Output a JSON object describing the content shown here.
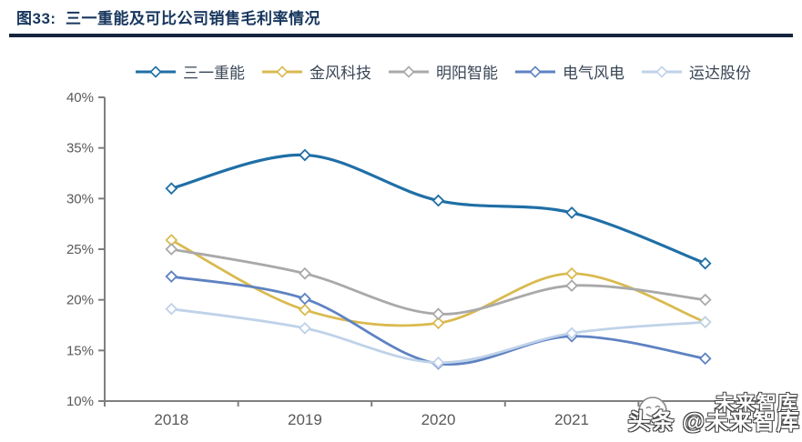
{
  "header": {
    "title": "图33:  三一重能及可比公司销售毛利率情况",
    "accent_color": "#17365D",
    "rule_color": "#16243D"
  },
  "chart_data": {
    "type": "line",
    "title": "三一重能及可比公司销售毛利率情况",
    "categories": [
      "2018",
      "2019",
      "2020",
      "2021",
      ""
    ],
    "series": [
      {
        "name": "三一重能",
        "color": "#1F6FA6",
        "line_width": 3.2,
        "values": [
          31.0,
          34.3,
          29.8,
          28.6,
          23.6
        ]
      },
      {
        "name": "金风科技",
        "color": "#D9BA4F",
        "line_width": 2.8,
        "values": [
          25.9,
          19.0,
          17.7,
          22.6,
          17.8
        ]
      },
      {
        "name": "明阳智能",
        "color": "#A9A9A9",
        "line_width": 2.8,
        "values": [
          25.0,
          22.6,
          18.6,
          21.4,
          20.0
        ]
      },
      {
        "name": "电气风电",
        "color": "#5E82C2",
        "line_width": 2.8,
        "values": [
          22.3,
          20.1,
          13.7,
          16.4,
          14.2
        ]
      },
      {
        "name": "运达股份",
        "color": "#BFD2E9",
        "line_width": 2.8,
        "values": [
          19.1,
          17.2,
          13.8,
          16.7,
          17.8
        ]
      }
    ],
    "ylim": [
      10,
      40
    ],
    "ytick_step": 5,
    "ytick_labels": [
      "40%",
      "35%",
      "30%",
      "25%",
      "20%",
      "15%",
      "10%"
    ],
    "xlabel": "",
    "ylabel": "",
    "grid": false,
    "legend_position": "top",
    "marker": "open-diamond",
    "axis_color": "#7F7F7F",
    "tick_label_color": "#595959"
  },
  "watermark": {
    "line1": "未来智库",
    "line2": "头条 @未来智库",
    "logo": "toutiao-smiley"
  }
}
